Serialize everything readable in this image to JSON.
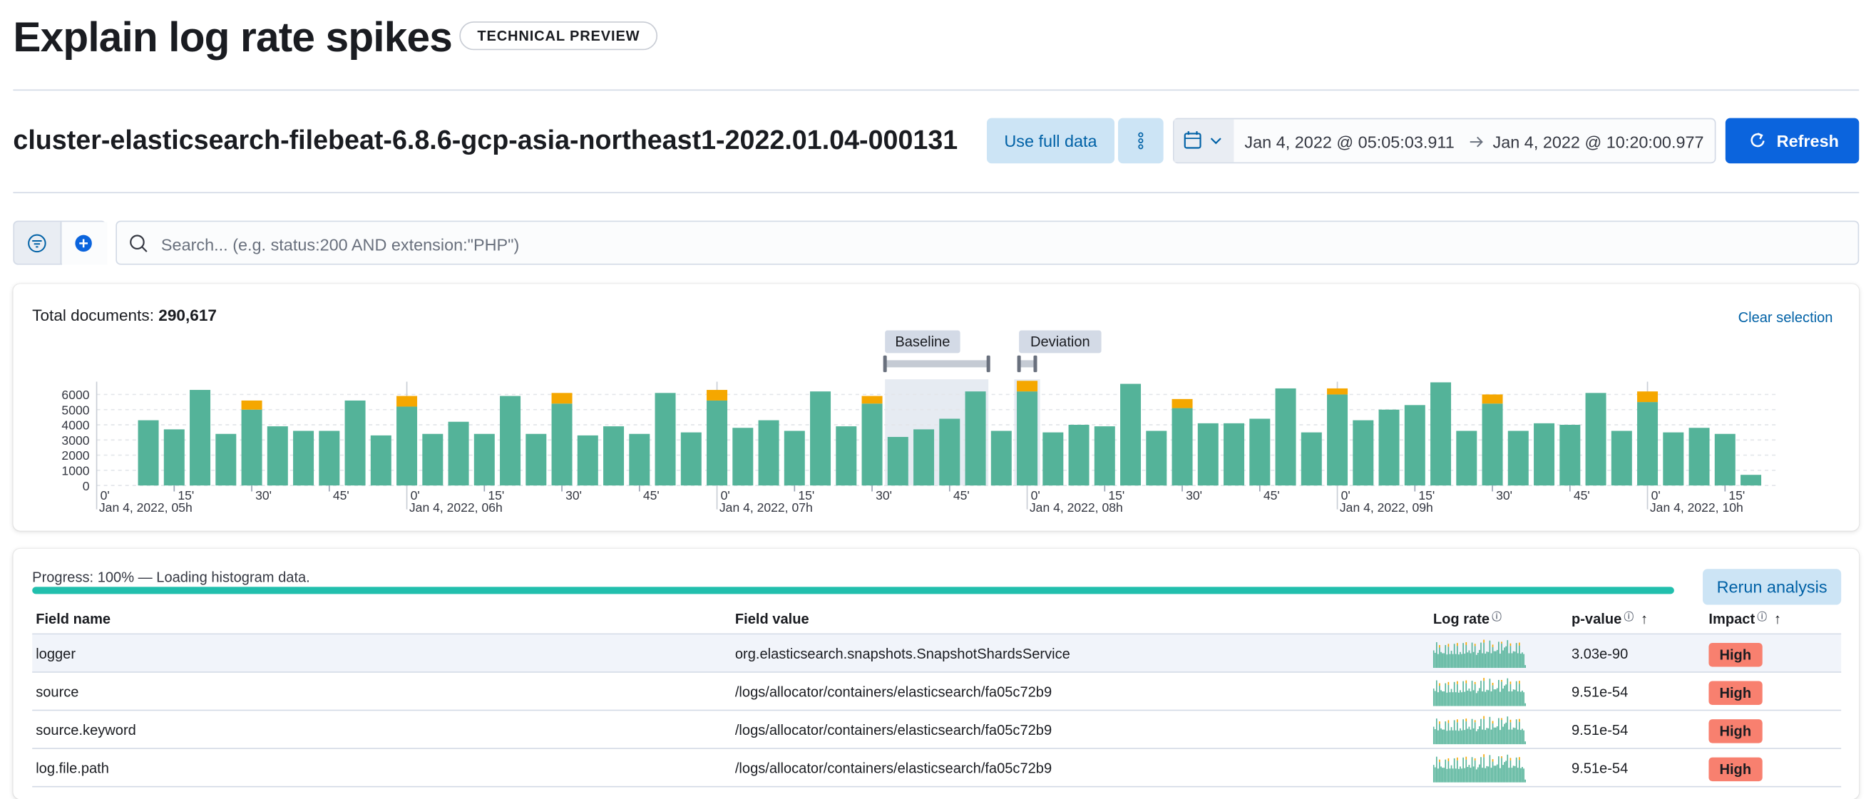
{
  "header": {
    "title": "Explain log rate spikes",
    "badge": "TECHNICAL PREVIEW"
  },
  "toolbar": {
    "index": "cluster-elasticsearch-filebeat-6.8.6-gcp-asia-northeast1-2022.01.04-000131",
    "use_full_data": "Use full data",
    "date_start": "Jan 4, 2022 @ 05:05:03.911",
    "date_end": "Jan 4, 2022 @ 10:20:00.977",
    "refresh": "Refresh"
  },
  "search": {
    "placeholder": "Search... (e.g. status:200 AND extension:\"PHP\")"
  },
  "chart_data": {
    "type": "bar",
    "total_label": "Total documents:",
    "total": "290,617",
    "clear_selection": "Clear selection",
    "baseline": "Baseline",
    "deviation": "Deviation",
    "x": [
      10,
      15,
      20,
      25,
      30,
      35,
      40,
      45,
      50,
      55,
      60,
      65,
      70,
      75,
      80,
      85,
      90,
      95,
      100,
      105,
      110,
      115,
      120,
      125,
      130,
      135,
      140,
      145,
      150,
      155,
      160,
      165,
      170,
      175,
      180,
      185,
      190,
      195,
      200,
      205,
      210,
      215,
      220,
      225,
      230,
      235,
      240,
      245,
      250,
      255,
      260,
      265,
      270,
      275,
      280,
      285,
      290,
      295,
      300,
      305,
      310,
      315,
      320
    ],
    "xlim": [
      0,
      325
    ],
    "xticks": [
      {
        "value": 0,
        "label": "0'",
        "sublabel": "Jan 4, 2022, 05h"
      },
      {
        "value": 15,
        "label": "15'"
      },
      {
        "value": 30,
        "label": "30'"
      },
      {
        "value": 45,
        "label": "45'"
      },
      {
        "value": 60,
        "label": "0'",
        "sublabel": "Jan 4, 2022, 06h"
      },
      {
        "value": 75,
        "label": "15'"
      },
      {
        "value": 90,
        "label": "30'"
      },
      {
        "value": 105,
        "label": "45'"
      },
      {
        "value": 120,
        "label": "0'",
        "sublabel": "Jan 4, 2022, 07h"
      },
      {
        "value": 135,
        "label": "15'"
      },
      {
        "value": 150,
        "label": "30'"
      },
      {
        "value": 165,
        "label": "45'"
      },
      {
        "value": 180,
        "label": "0'",
        "sublabel": "Jan 4, 2022, 08h"
      },
      {
        "value": 195,
        "label": "15'"
      },
      {
        "value": 210,
        "label": "30'"
      },
      {
        "value": 225,
        "label": "45'"
      },
      {
        "value": 240,
        "label": "0'",
        "sublabel": "Jan 4, 2022, 09h"
      },
      {
        "value": 255,
        "label": "15'"
      },
      {
        "value": 270,
        "label": "30'"
      },
      {
        "value": 285,
        "label": "45'"
      },
      {
        "value": 300,
        "label": "0'",
        "sublabel": "Jan 4, 2022, 10h"
      },
      {
        "value": 315,
        "label": "15'"
      }
    ],
    "ylim": [
      0,
      7000
    ],
    "yticks": [
      0,
      1000,
      2000,
      3000,
      4000,
      5000,
      6000
    ],
    "grid": true,
    "series": [
      {
        "color": "#54b399",
        "values": [
          4300,
          3700,
          6300,
          3400,
          5000,
          3900,
          3600,
          3600,
          5600,
          3300,
          5200,
          3400,
          4200,
          3400,
          5900,
          3400,
          5400,
          3300,
          3900,
          3400,
          6100,
          3500,
          5600,
          3800,
          4300,
          3600,
          6200,
          3900,
          5400,
          3200,
          3700,
          4400,
          6200,
          3600,
          6200,
          3500,
          4000,
          3900,
          6700,
          3600,
          5100,
          4100,
          4100,
          4400,
          6400,
          3500,
          6000,
          4300,
          5000,
          5300,
          6800,
          3600,
          5400,
          3600,
          4100,
          4000,
          6100,
          3600,
          5500,
          3500,
          3800,
          3400,
          700
        ]
      },
      {
        "color": "#f5a700",
        "values": [
          null,
          null,
          null,
          null,
          600,
          null,
          null,
          null,
          null,
          null,
          700,
          null,
          null,
          null,
          null,
          null,
          700,
          null,
          null,
          null,
          null,
          null,
          700,
          null,
          null,
          null,
          null,
          null,
          500,
          null,
          null,
          null,
          null,
          null,
          700,
          null,
          null,
          null,
          null,
          null,
          600,
          null,
          null,
          null,
          null,
          null,
          400,
          null,
          null,
          null,
          null,
          null,
          600,
          null,
          null,
          null,
          null,
          null,
          700,
          null,
          null,
          null,
          null
        ]
      }
    ]
  },
  "results": {
    "progress": "Progress: 100% — Loading histogram data.",
    "progress_percent": 100,
    "rerun": "Rerun analysis",
    "columns": [
      "Field name",
      "Field value",
      "Log rate",
      "p-value",
      "Impact"
    ],
    "rows": [
      [
        "logger",
        "org.elasticsearch.snapshots.SnapshotShardsService",
        "3.03e-90",
        "High"
      ],
      [
        "source",
        "/logs/allocator/containers/elasticsearch/fa05c72b9",
        "9.51e-54",
        "High"
      ],
      [
        "source.keyword",
        "/logs/allocator/containers/elasticsearch/fa05c72b9",
        "9.51e-54",
        "High"
      ],
      [
        "log.file.path",
        "/logs/allocator/containers/elasticsearch/fa05c72b9",
        "9.51e-54",
        "High"
      ]
    ]
  }
}
